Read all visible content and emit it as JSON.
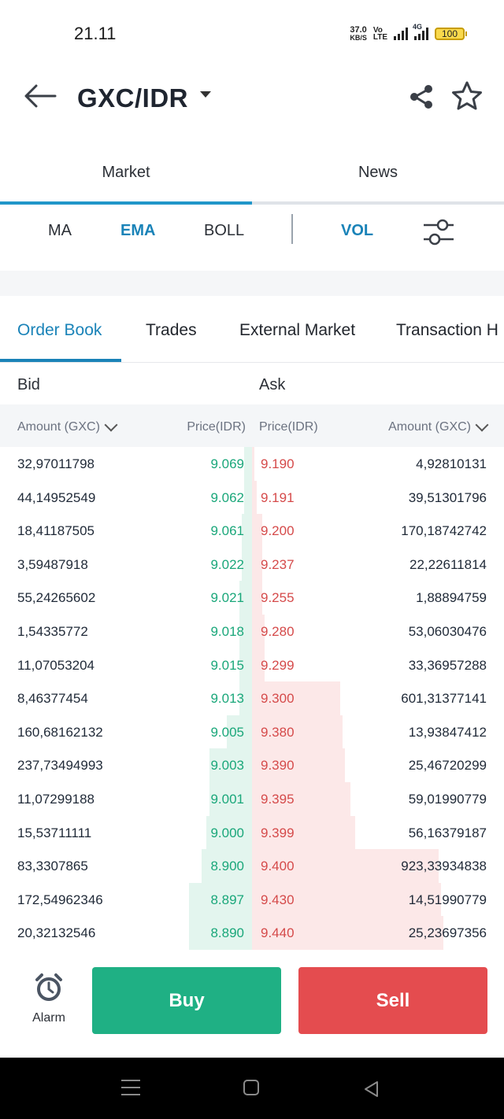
{
  "status_bar": {
    "time": "21.11",
    "net_speed_value": "37.0",
    "net_speed_unit": "KB/S",
    "volte_top": "Vo",
    "volte_bottom": "LTE",
    "network_type": "4G",
    "battery": "100"
  },
  "header": {
    "pair": "GXC/IDR"
  },
  "main_tabs": [
    {
      "label": "Market",
      "active": true
    },
    {
      "label": "News",
      "active": false
    }
  ],
  "indicators": {
    "ma": "MA",
    "ema": "EMA",
    "boll": "BOLL",
    "vol": "VOL"
  },
  "order_tabs": [
    {
      "label": "Order Book",
      "active": true
    },
    {
      "label": "Trades",
      "active": false
    },
    {
      "label": "External Market",
      "active": false
    },
    {
      "label": "Transaction H",
      "active": false
    }
  ],
  "book": {
    "bid_label": "Bid",
    "ask_label": "Ask",
    "bid_amount_header": "Amount (GXC)",
    "bid_price_header": "Price(IDR)",
    "ask_price_header": "Price(IDR)",
    "ask_amount_header": "Amount (GXC)",
    "rows": [
      {
        "bid_amount": "32,97011798",
        "bid_price": "9.069",
        "ask_price": "9.190",
        "ask_amount": "4,92810131",
        "bid_depth": 0.03,
        "ask_depth": 0.01
      },
      {
        "bid_amount": "44,14952549",
        "bid_price": "9.062",
        "ask_price": "9.191",
        "ask_amount": "39,51301796",
        "bid_depth": 0.03,
        "ask_depth": 0.02
      },
      {
        "bid_amount": "18,41187505",
        "bid_price": "9.061",
        "ask_price": "9.200",
        "ask_amount": "170,18742742",
        "bid_depth": 0.04,
        "ask_depth": 0.04
      },
      {
        "bid_amount": "3,59487918",
        "bid_price": "9.022",
        "ask_price": "9.237",
        "ask_amount": "22,22611814",
        "bid_depth": 0.04,
        "ask_depth": 0.04
      },
      {
        "bid_amount": "55,24265602",
        "bid_price": "9.021",
        "ask_price": "9.255",
        "ask_amount": "1,88894759",
        "bid_depth": 0.05,
        "ask_depth": 0.04
      },
      {
        "bid_amount": "1,54335772",
        "bid_price": "9.018",
        "ask_price": "9.280",
        "ask_amount": "53,06030476",
        "bid_depth": 0.05,
        "ask_depth": 0.05
      },
      {
        "bid_amount": "11,07053204",
        "bid_price": "9.015",
        "ask_price": "9.299",
        "ask_amount": "33,36957288",
        "bid_depth": 0.05,
        "ask_depth": 0.05
      },
      {
        "bid_amount": "8,46377454",
        "bid_price": "9.013",
        "ask_price": "9.300",
        "ask_amount": "601,31377141",
        "bid_depth": 0.05,
        "ask_depth": 0.35
      },
      {
        "bid_amount": "160,68162132",
        "bid_price": "9.005",
        "ask_price": "9.380",
        "ask_amount": "13,93847412",
        "bid_depth": 0.1,
        "ask_depth": 0.36
      },
      {
        "bid_amount": "237,73494993",
        "bid_price": "9.003",
        "ask_price": "9.390",
        "ask_amount": "25,46720299",
        "bid_depth": 0.17,
        "ask_depth": 0.37
      },
      {
        "bid_amount": "11,07299188",
        "bid_price": "9.001",
        "ask_price": "9.395",
        "ask_amount": "59,01990779",
        "bid_depth": 0.17,
        "ask_depth": 0.39
      },
      {
        "bid_amount": "15,53711111",
        "bid_price": "9.000",
        "ask_price": "9.399",
        "ask_amount": "56,16379187",
        "bid_depth": 0.18,
        "ask_depth": 0.41
      },
      {
        "bid_amount": "83,3307865",
        "bid_price": "8.900",
        "ask_price": "9.400",
        "ask_amount": "923,33934838",
        "bid_depth": 0.2,
        "ask_depth": 0.74
      },
      {
        "bid_amount": "172,54962346",
        "bid_price": "8.897",
        "ask_price": "9.430",
        "ask_amount": "14,51990779",
        "bid_depth": 0.25,
        "ask_depth": 0.75
      },
      {
        "bid_amount": "20,32132546",
        "bid_price": "8.890",
        "ask_price": "9.440",
        "ask_amount": "25,23697356",
        "bid_depth": 0.25,
        "ask_depth": 0.76
      }
    ]
  },
  "actions": {
    "alarm": "Alarm",
    "buy": "Buy",
    "sell": "Sell"
  },
  "colors": {
    "accent": "#1a83b8",
    "bid": "#1aa77a",
    "ask": "#d54a4a",
    "buy": "#1fb084",
    "sell": "#e44c4f"
  },
  "icons": [
    "back-arrow-icon",
    "caret-down-icon",
    "share-icon",
    "star-icon",
    "sliders-icon",
    "chevron-down-icon",
    "alarm-clock-icon",
    "menu-icon",
    "home-icon",
    "back-triangle-icon"
  ]
}
